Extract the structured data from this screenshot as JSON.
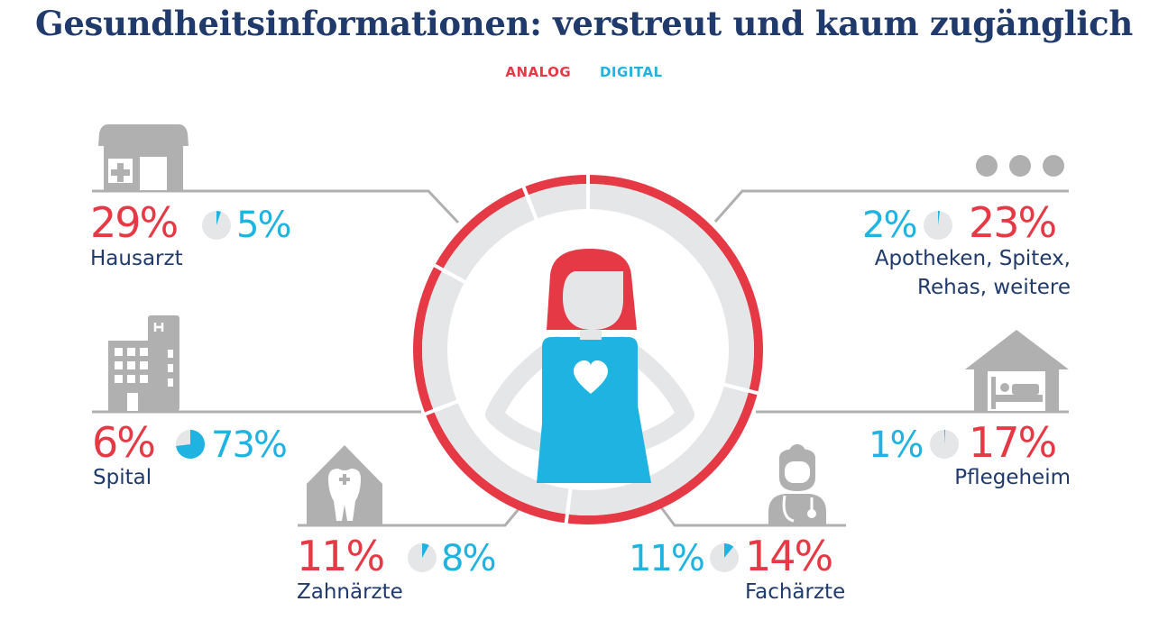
{
  "title": "Gesundheitsinformationen: verstreut und kaum zugänglich",
  "legend": {
    "analog": "ANALOG",
    "digital": "DIGITAL"
  },
  "colors": {
    "analog": "#e63946",
    "digital": "#1fb3e2",
    "navy": "#1f3a6b",
    "gray": "#b0b0b0",
    "light_gray": "#e5e6e8"
  },
  "chart_data": {
    "type": "pie",
    "series_names": [
      "ANALOG",
      "DIGITAL"
    ],
    "categories": [
      {
        "key": "hausarzt",
        "label": "Hausarzt",
        "analog": 29,
        "digital": 5,
        "analog_text": "29%",
        "digital_text": "5%",
        "icon": "clinic-icon"
      },
      {
        "key": "apotheken",
        "label_line1": "Apotheken, Spitex,",
        "label_line2": "Rehas, weitere",
        "analog": 23,
        "digital": 2,
        "analog_text": "23%",
        "digital_text": "2%",
        "icon": "more-dots-icon"
      },
      {
        "key": "spital",
        "label": "Spital",
        "analog": 6,
        "digital": 73,
        "analog_text": "6%",
        "digital_text": "73%",
        "icon": "hospital-icon"
      },
      {
        "key": "pflegeheim",
        "label": "Pflegeheim",
        "analog": 17,
        "digital": 1,
        "analog_text": "17%",
        "digital_text": "1%",
        "icon": "nursing-home-icon"
      },
      {
        "key": "zahnaerzte",
        "label": "Zahnärzte",
        "analog": 11,
        "digital": 8,
        "analog_text": "11%",
        "digital_text": "8%",
        "icon": "dentist-icon"
      },
      {
        "key": "fachaerzte",
        "label": "Fachärzte",
        "analog": 14,
        "digital": 11,
        "analog_text": "14%",
        "digital_text": "11%",
        "icon": "specialist-doctor-icon"
      }
    ],
    "ring_segments_analog_order": [
      29,
      23,
      17,
      14,
      11,
      6
    ]
  }
}
